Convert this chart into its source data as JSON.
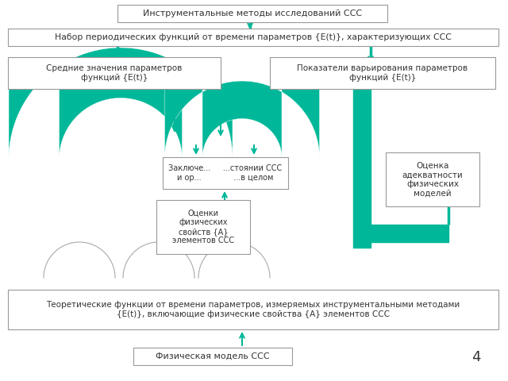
{
  "bg_color": "#ffffff",
  "box_color": "#ffffff",
  "box_border": "#999999",
  "teal": "#00b899",
  "text_color": "#333333",
  "title": "Инструментальные методы исследований ССС",
  "box2": "Набор периодических функций от времени параметров {E(t)}, характеризующих ССС",
  "box3l": "Средние значения параметров\nфункций {E(t)}",
  "box3r": "Показатели варьирования параметров\nфункций {E(t)}",
  "box_center": "Заключе...     ...стоянии ССС\nи ор...             ...в целом",
  "box_lb": "Оценки\nфизических\nсвойств {A}\nэлементов ССС",
  "box_right": "Оценка\nадекватности\nфизических\nмоделей",
  "box_bottom": "Теоретические функции от времени параметров, измеряемых инструментальными методами\n{E(t)}, включающие физические свойства {A} элементов ССС",
  "box_phys": "Физическая модель ССС",
  "page_num": "4"
}
